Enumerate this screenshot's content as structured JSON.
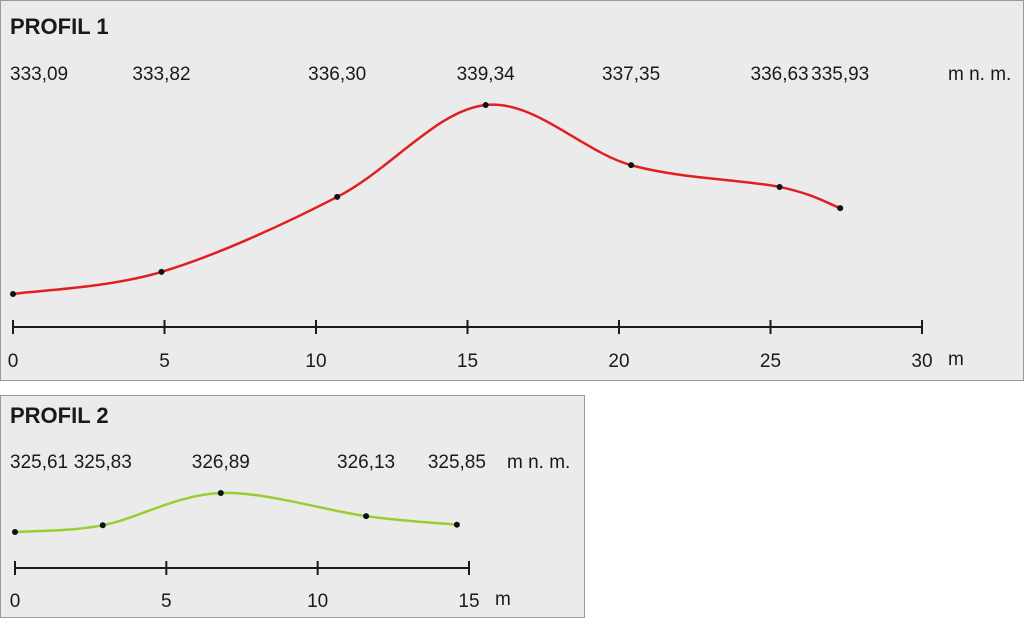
{
  "chart_data": [
    {
      "type": "line",
      "title": "PROFIL 1",
      "value_unit": "m n. m.",
      "xlabel": "m",
      "color": "#e02020",
      "x": [
        0,
        4.9,
        10.7,
        15.6,
        20.4,
        25.3,
        27.3
      ],
      "values": [
        333.09,
        333.82,
        336.3,
        339.34,
        337.35,
        336.63,
        335.93
      ],
      "value_labels": [
        "333,09",
        "333,82",
        "336,30",
        "339,34",
        "337,35",
        "336,63",
        "335,93"
      ],
      "xlim": [
        0,
        30
      ],
      "xticks": [
        0,
        5,
        10,
        15,
        20,
        25,
        30
      ]
    },
    {
      "type": "line",
      "title": "PROFIL 2",
      "value_unit": "m n. m.",
      "xlabel": "m",
      "color": "#9acd32",
      "x": [
        0,
        2.9,
        6.8,
        11.6,
        14.6
      ],
      "values": [
        325.61,
        325.83,
        326.89,
        326.13,
        325.85
      ],
      "value_labels": [
        "325,61",
        "325,83",
        "326,89",
        "326,13",
        "325,85"
      ],
      "xlim": [
        0,
        15
      ],
      "xticks": [
        0,
        5,
        10,
        15
      ]
    }
  ]
}
